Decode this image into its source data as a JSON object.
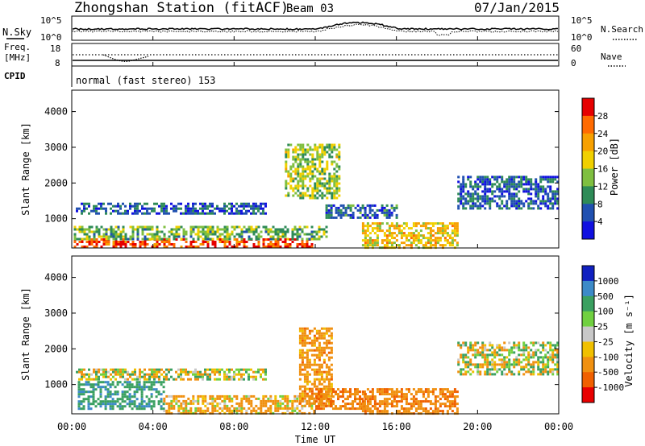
{
  "header": {
    "station": "Zhongshan Station (fitACF)",
    "beam": "Beam 03",
    "date": "07/Jan/2015"
  },
  "strips": {
    "nsky_label": "N.Sky",
    "nsearch_label": "N.Search",
    "freq_label": "Freq.",
    "freq_unit": "[MHz]",
    "nave_label": "Nave",
    "cpid_label": "CPID",
    "cpid_text": "normal (fast stereo) 153",
    "noise_ticks": [
      "10^5",
      "10^0"
    ],
    "noise_ticks_right": [
      "10^5",
      "10^0"
    ],
    "freq_ticks": [
      "18",
      "8"
    ],
    "nave_ticks": [
      "60",
      "0"
    ]
  },
  "axes": {
    "xlabel": "Time UT",
    "ylabel": "Slant Range [km]",
    "x_ticks": [
      "00:00",
      "04:00",
      "08:00",
      "12:00",
      "16:00",
      "20:00",
      "00:00"
    ],
    "y_ticks": [
      "1000",
      "2000",
      "3000",
      "4000"
    ]
  },
  "colorbars": {
    "power": {
      "label": "Power [dB]",
      "ticks": [
        "28",
        "24",
        "20",
        "16",
        "12",
        "8",
        "4"
      ],
      "colors": [
        "#e60000",
        "#ff6a00",
        "#f7a000",
        "#f0d000",
        "#7fbf40",
        "#2e8b57",
        "#2050b0",
        "#1010e0"
      ]
    },
    "velocity": {
      "label": "Velocity [m s⁻¹]",
      "ticks": [
        "1000",
        "500",
        "100",
        "25",
        "-25",
        "-100",
        "-500",
        "-1000"
      ],
      "colors": [
        "#1020c0",
        "#3c8ac8",
        "#3aa060",
        "#70d040",
        "#c8c8c8",
        "#f0c000",
        "#f09010",
        "#f06000",
        "#e80000"
      ]
    }
  },
  "chart_data": [
    {
      "type": "heatmap",
      "title": "Zhongshan Station (fitACF) Beam 03 07/Jan/2015",
      "xlabel": "Time UT",
      "ylabel": "Slant Range [km]",
      "xlim": [
        0,
        24
      ],
      "ylim": [
        180,
        4600
      ],
      "colorbar_label": "Power [dB]",
      "colorbar_range": [
        0,
        30
      ],
      "regions": [
        {
          "t0": 0.1,
          "t1": 11.8,
          "r0": 190,
          "r1": 450,
          "value": 26
        },
        {
          "t0": 0.1,
          "t1": 12.5,
          "r0": 450,
          "r1": 800,
          "value": 12
        },
        {
          "t0": 0.2,
          "t1": 9.5,
          "r0": 1150,
          "r1": 1450,
          "value": 6
        },
        {
          "t0": 10.5,
          "t1": 13.2,
          "r0": 1600,
          "r1": 3100,
          "value": 14
        },
        {
          "t0": 14.3,
          "t1": 19.0,
          "r0": 200,
          "r1": 900,
          "value": 18
        },
        {
          "t0": 19.0,
          "t1": 24.0,
          "r0": 1300,
          "r1": 2200,
          "value": 6
        },
        {
          "t0": 12.5,
          "t1": 16.0,
          "r0": 1000,
          "r1": 1400,
          "value": 7
        }
      ]
    },
    {
      "type": "heatmap",
      "title": "",
      "xlabel": "Time UT",
      "ylabel": "Slant Range [km]",
      "xlim": [
        0,
        24
      ],
      "ylim": [
        180,
        4600
      ],
      "colorbar_label": "Velocity [m s⁻¹]",
      "colorbar_range": [
        -1000,
        1000
      ],
      "regions": [
        {
          "t0": 0.3,
          "t1": 4.5,
          "r0": 300,
          "r1": 1100,
          "value": 400
        },
        {
          "t0": 4.5,
          "t1": 12.0,
          "r0": 200,
          "r1": 700,
          "value": -150
        },
        {
          "t0": 0.2,
          "t1": 9.5,
          "r0": 1150,
          "r1": 1450,
          "value": 0
        },
        {
          "t0": 11.2,
          "t1": 12.8,
          "r0": 400,
          "r1": 2600,
          "value": -300
        },
        {
          "t0": 12.0,
          "t1": 14.5,
          "r0": 300,
          "r1": 900,
          "value": -400
        },
        {
          "t0": 14.3,
          "t1": 19.0,
          "r0": 200,
          "r1": 900,
          "value": -400
        },
        {
          "t0": 19.0,
          "t1": 24.0,
          "r0": 1300,
          "r1": 2200,
          "value": 0
        }
      ]
    }
  ]
}
